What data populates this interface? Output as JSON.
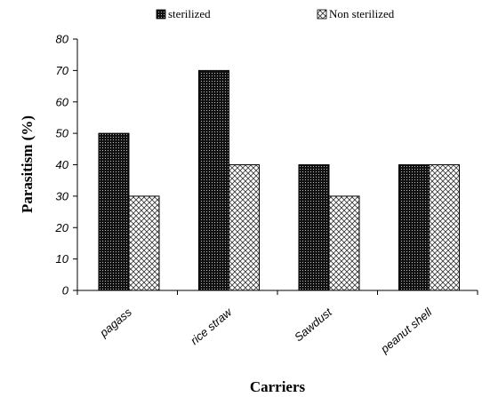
{
  "chart_data": {
    "type": "bar",
    "categories": [
      "pagass",
      "rice straw",
      "Sawdust",
      "peanut shell"
    ],
    "series": [
      {
        "name": "sterilized",
        "values": [
          50,
          70,
          40,
          40
        ],
        "pattern": "dense-dots",
        "color": "#111111"
      },
      {
        "name": "Non sterilized",
        "values": [
          30,
          40,
          30,
          40
        ],
        "pattern": "crosshatch",
        "color": "#ffffff"
      }
    ],
    "xlabel": "Carriers",
    "ylabel": "Parasitism (%)",
    "ylim": [
      0,
      80
    ],
    "yticks": [
      0,
      10,
      20,
      30,
      40,
      50,
      60,
      70,
      80
    ],
    "grid": false,
    "legend_position": "top"
  }
}
